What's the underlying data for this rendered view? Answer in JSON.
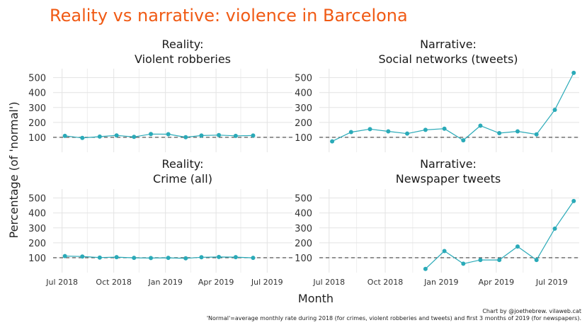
{
  "title": "Reality vs narrative: violence in Barcelona",
  "title_color": "#f05a14",
  "series_color": "#2aaab8",
  "ylabel": "Percentage (of 'normal')",
  "xlabel": "Month",
  "caption_line1": "Chart by @joethebrew. vilaweb.cat",
  "caption_line2": "'Normal'=average monthly rate during 2018 (for crimes, violent robberies and tweets) and first 3 months of 2019 (for newspapers).",
  "chart_data": [
    {
      "type": "line",
      "title_line1": "Reality:",
      "title_line2": "Violent robberies",
      "ylim": [
        0,
        560
      ],
      "yticks": [
        100,
        200,
        300,
        400,
        500
      ],
      "xticks": [
        "Jul 2018",
        "Oct 2018",
        "Jan 2019",
        "Apr 2019",
        "Jul 2019"
      ],
      "reference_line": 100,
      "x": [
        "2018-07-06",
        "2018-08-06",
        "2018-09-06",
        "2018-10-06",
        "2018-11-06",
        "2018-12-06",
        "2019-01-06",
        "2019-02-06",
        "2019-03-06",
        "2019-04-06",
        "2019-05-06",
        "2019-06-06"
      ],
      "values": [
        110,
        96,
        105,
        113,
        103,
        122,
        121,
        101,
        112,
        115,
        110,
        112
      ]
    },
    {
      "type": "line",
      "title_line1": "Narrative:",
      "title_line2": "Social networks (tweets)",
      "ylim": [
        0,
        560
      ],
      "yticks": [
        100,
        200,
        300,
        400,
        500
      ],
      "xticks": [
        "Jul 2018",
        "Oct 2018",
        "Jan 2019",
        "Apr 2019",
        "Jul 2019"
      ],
      "reference_line": 100,
      "x": [
        "2018-07-06",
        "2018-08-06",
        "2018-09-06",
        "2018-10-06",
        "2018-11-06",
        "2018-12-06",
        "2019-01-06",
        "2019-02-06",
        "2019-03-06",
        "2019-04-06",
        "2019-05-06",
        "2019-06-06",
        "2019-07-06",
        "2019-08-06"
      ],
      "values": [
        73,
        135,
        155,
        140,
        125,
        150,
        158,
        80,
        178,
        128,
        140,
        120,
        284,
        532
      ]
    },
    {
      "type": "line",
      "title_line1": "Reality:",
      "title_line2": "Crime (all)",
      "ylim": [
        0,
        560
      ],
      "yticks": [
        100,
        200,
        300,
        400,
        500
      ],
      "xticks": [
        "Jul 2018",
        "Oct 2018",
        "Jan 2019",
        "Apr 2019",
        "Jul 2019"
      ],
      "reference_line": 100,
      "x": [
        "2018-07-06",
        "2018-08-06",
        "2018-09-06",
        "2018-10-06",
        "2018-11-06",
        "2018-12-06",
        "2019-01-06",
        "2019-02-06",
        "2019-03-06",
        "2019-04-06",
        "2019-05-06",
        "2019-06-06"
      ],
      "values": [
        111,
        108,
        101,
        104,
        99,
        98,
        99,
        96,
        103,
        105,
        104,
        99
      ]
    },
    {
      "type": "line",
      "title_line1": "Narrative:",
      "title_line2": "Newspaper tweets",
      "ylim": [
        0,
        560
      ],
      "yticks": [
        100,
        200,
        300,
        400,
        500
      ],
      "xticks": [
        "Jul 2018",
        "Oct 2018",
        "Jan 2019",
        "Apr 2019",
        "Jul 2019"
      ],
      "reference_line": 100,
      "x": [
        "2018-12-06",
        "2019-01-06",
        "2019-02-06",
        "2019-03-06",
        "2019-04-06",
        "2019-05-06",
        "2019-06-06",
        "2019-07-06",
        "2019-08-06"
      ],
      "values": [
        25,
        145,
        60,
        85,
        85,
        175,
        85,
        295,
        480
      ]
    }
  ]
}
